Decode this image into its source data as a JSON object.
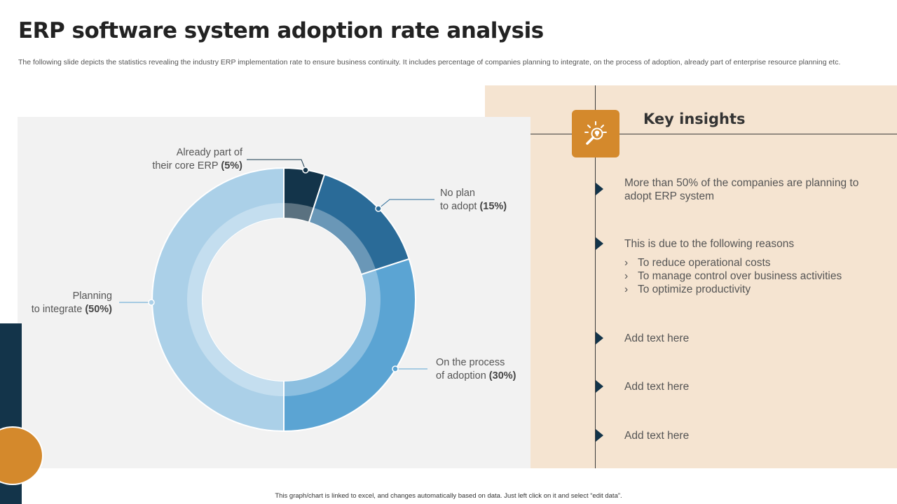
{
  "header": {
    "title": "ERP software system adoption rate analysis",
    "subtitle": "The following slide depicts the statistics revealing the industry ERP implementation rate to ensure business continuity. It includes percentage of companies planning to integrate, on the process of adoption, already part of enterprise resource planning etc."
  },
  "chart_data": {
    "type": "pie",
    "variant": "donut",
    "categories": [
      "Already part of their core ERP",
      "No plan to adopt",
      "On the process of adoption",
      "Planning to integrate"
    ],
    "values": [
      5,
      15,
      30,
      50
    ],
    "unit": "%",
    "colors": [
      "#13344a",
      "#2a6b98",
      "#5ba4d3",
      "#abd0e8"
    ],
    "labels": [
      {
        "line1": "Already part of",
        "line2": "their core ERP",
        "pct": "(5%)"
      },
      {
        "line1": "No plan",
        "line2": "to adopt",
        "pct": "(15%)"
      },
      {
        "line1": "On the process",
        "line2": "of adoption",
        "pct": "(30%)"
      },
      {
        "line1": "Planning",
        "line2": "to integrate",
        "pct": "(50%)"
      }
    ]
  },
  "insights": {
    "title": "Key insights",
    "icon": "lightbulb-magnifier-icon",
    "items": [
      {
        "text": "More than 50% of the companies are planning to adopt ERP system"
      },
      {
        "text": "This is due to the following reasons",
        "bullets": [
          "To reduce operational costs",
          "To manage control over business activities",
          "To optimize productivity"
        ]
      },
      {
        "text": "Add text here"
      },
      {
        "text": "Add text here"
      },
      {
        "text": "Add text here"
      }
    ]
  },
  "footer": "This graph/chart is linked to excel, and changes automatically based on data. Just left click on it and select “edit data”.",
  "colors": {
    "accent": "#d4892c",
    "navy": "#13344a",
    "panel": "#f5e4d1",
    "chart_bg": "#f2f2f2"
  }
}
